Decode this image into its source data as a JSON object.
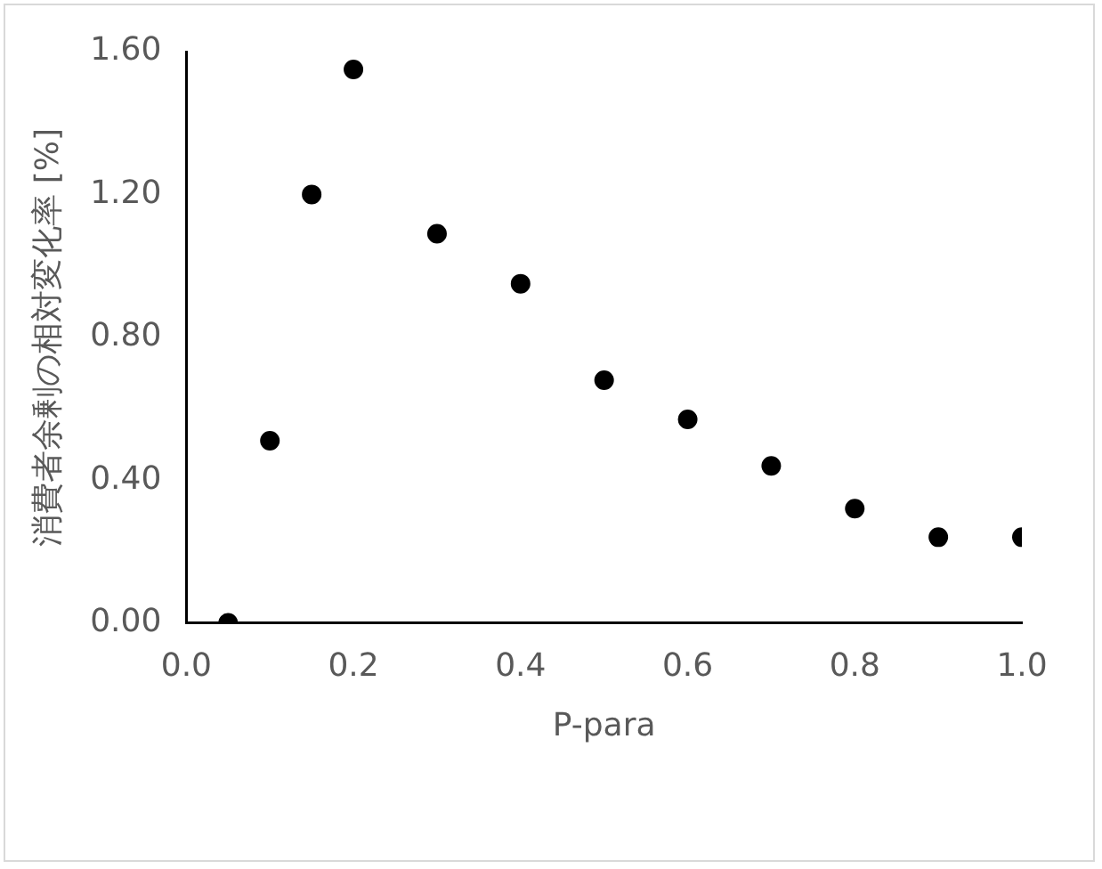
{
  "chart_data": {
    "type": "scatter",
    "xlabel": "P-para",
    "ylabel": "消費者余剰の相対変化率 [%]",
    "x": [
      0.05,
      0.1,
      0.15,
      0.2,
      0.3,
      0.4,
      0.5,
      0.6,
      0.7,
      0.8,
      0.9,
      1.0
    ],
    "series": [
      {
        "color": "#000000",
        "values": [
          0,
          0.51,
          1.2,
          1.55,
          1.09,
          0.95,
          0.68,
          0.57,
          0.44,
          0.32,
          0.24,
          0.24
        ]
      }
    ],
    "xlim": [
      0,
      1
    ],
    "xticks": [
      {
        "value": 0,
        "label": "0.0"
      },
      {
        "value": 0.2,
        "label": "0.2"
      },
      {
        "value": 0.4,
        "label": "0.4"
      },
      {
        "value": 0.6,
        "label": "0.6"
      },
      {
        "value": 0.8,
        "label": "0.8"
      },
      {
        "value": 1,
        "label": "1.0"
      }
    ],
    "ylim": [
      0,
      1.6
    ],
    "yticks": [
      {
        "value": 0,
        "label": "0.00"
      },
      {
        "value": 0.4,
        "label": "0.40"
      },
      {
        "value": 0.8,
        "label": "0.80"
      },
      {
        "value": 1.2,
        "label": "1.20"
      },
      {
        "value": 1.6,
        "label": "1.60"
      }
    ],
    "grid": false,
    "legend": false,
    "marker": "circle"
  }
}
